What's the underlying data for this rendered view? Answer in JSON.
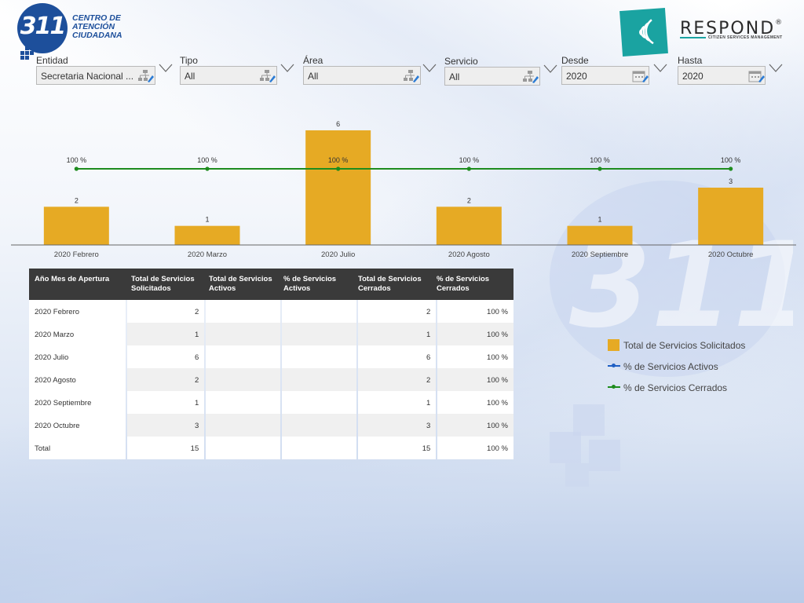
{
  "header": {
    "logo_number": "311",
    "logo_lines": [
      "CENTRO DE",
      "ATENCIÓN",
      "CIUDADANA"
    ],
    "brand_name": "RESPOND",
    "brand_mark": "®",
    "brand_tagline": "CITIZEN SERVICES MANAGEMENT"
  },
  "filters": [
    {
      "label": "Entidad",
      "value": "Secretaria Nacional ...",
      "icon": "hierarchy-edit-icon"
    },
    {
      "label": "Tipo",
      "value": "All",
      "icon": "hierarchy-edit-icon"
    },
    {
      "label": "Área",
      "value": "All",
      "icon": "hierarchy-edit-icon"
    },
    {
      "label": "Servicio",
      "value": "All",
      "icon": "hierarchy-edit-icon"
    },
    {
      "label": "Desde",
      "value": "2020",
      "icon": "calendar-edit-icon"
    },
    {
      "label": "Hasta",
      "value": "2020",
      "icon": "calendar-edit-icon"
    }
  ],
  "chart_data": {
    "type": "bar",
    "categories": [
      "2020 Febrero",
      "2020 Marzo",
      "2020 Julio",
      "2020 Agosto",
      "2020 Septiembre",
      "2020 Octubre"
    ],
    "series": [
      {
        "name": "Total de Servicios Solicitados",
        "kind": "bar",
        "values": [
          2,
          1,
          6,
          2,
          1,
          3
        ],
        "labels": [
          "2",
          "1",
          "6",
          "2",
          "1",
          "3"
        ],
        "color": "#e6aa24"
      },
      {
        "name": "% de Servicios Cerrados",
        "kind": "line",
        "values": [
          100,
          100,
          100,
          100,
          100,
          100
        ],
        "labels": [
          "100 %",
          "100 %",
          "100 %",
          "100 %",
          "100 %",
          "100 %"
        ],
        "color": "#1e8c1e"
      }
    ],
    "ylim": [
      0,
      6
    ],
    "y2lim": [
      0,
      100
    ],
    "grid": false,
    "legend": "right"
  },
  "table": {
    "headers": [
      [
        "Año Mes de Apertura"
      ],
      [
        "Total de Servicios",
        "Solicitados"
      ],
      [
        "Total de Servicios",
        "Activos"
      ],
      [
        "% de Servicios",
        "Activos"
      ],
      [
        "Total de Servicios",
        "Cerrados"
      ],
      [
        "% de Servicios",
        "Cerrados"
      ]
    ],
    "rows": [
      [
        "2020 Febrero",
        "2",
        "",
        "",
        "2",
        "100 %"
      ],
      [
        "2020 Marzo",
        "1",
        "",
        "",
        "1",
        "100 %"
      ],
      [
        "2020 Julio",
        "6",
        "",
        "",
        "6",
        "100 %"
      ],
      [
        "2020 Agosto",
        "2",
        "",
        "",
        "2",
        "100 %"
      ],
      [
        "2020 Septiembre",
        "1",
        "",
        "",
        "1",
        "100 %"
      ],
      [
        "2020 Octubre",
        "3",
        "",
        "",
        "3",
        "100 %"
      ],
      [
        "Total",
        "15",
        "",
        "",
        "15",
        "100 %"
      ]
    ]
  },
  "legend": [
    {
      "label": "Total de Servicios Solicitados",
      "kind": "swatch",
      "color": "#e6aa24"
    },
    {
      "label": "% de Servicios Activos",
      "kind": "line",
      "color": "#1f5fc4"
    },
    {
      "label": "% de Servicios Cerrados",
      "kind": "line",
      "color": "#1e8c1e"
    }
  ]
}
